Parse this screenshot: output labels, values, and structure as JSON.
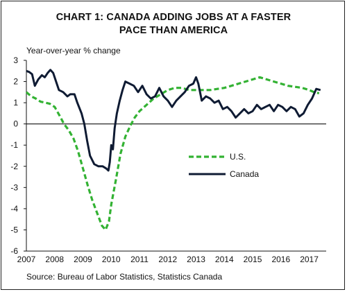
{
  "chart_data": {
    "type": "line",
    "title_lines": [
      "CHART 1: CANADA ADDING JOBS AT A FASTER",
      "PACE THAN AMERICA"
    ],
    "ylabel": "Year-over-year % change",
    "source": "Source: Bureau of Labor Statistics, Statistics Canada",
    "ylim": [
      -6,
      3
    ],
    "yticks": [
      3,
      2,
      1,
      0,
      -1,
      -2,
      -3,
      -4,
      -5,
      -6
    ],
    "xlim": [
      2007,
      2017.6
    ],
    "xticks": [
      2007,
      2008,
      2009,
      2010,
      2011,
      2012,
      2013,
      2014,
      2015,
      2016,
      2017
    ],
    "legend": {
      "position": "center-right"
    },
    "colors": {
      "us": "#33b233",
      "canada": "#0f1b33"
    },
    "series": [
      {
        "name": "U.S.",
        "style": "dashed",
        "points": [
          [
            2007.0,
            1.5
          ],
          [
            2007.17,
            1.3
          ],
          [
            2007.33,
            1.2
          ],
          [
            2007.5,
            1.05
          ],
          [
            2007.67,
            1.0
          ],
          [
            2007.83,
            0.95
          ],
          [
            2008.0,
            0.8
          ],
          [
            2008.17,
            0.4
          ],
          [
            2008.33,
            0.0
          ],
          [
            2008.5,
            -0.3
          ],
          [
            2008.67,
            -0.7
          ],
          [
            2008.83,
            -1.3
          ],
          [
            2009.0,
            -2.1
          ],
          [
            2009.17,
            -2.9
          ],
          [
            2009.33,
            -3.6
          ],
          [
            2009.5,
            -4.2
          ],
          [
            2009.67,
            -4.8
          ],
          [
            2009.8,
            -5.0
          ],
          [
            2009.92,
            -4.6
          ],
          [
            2010.0,
            -3.8
          ],
          [
            2010.17,
            -2.6
          ],
          [
            2010.33,
            -1.4
          ],
          [
            2010.5,
            -0.6
          ],
          [
            2010.67,
            -0.1
          ],
          [
            2010.83,
            0.3
          ],
          [
            2011.0,
            0.6
          ],
          [
            2011.25,
            0.9
          ],
          [
            2011.5,
            1.2
          ],
          [
            2011.75,
            1.4
          ],
          [
            2012.0,
            1.6
          ],
          [
            2012.25,
            1.7
          ],
          [
            2012.5,
            1.7
          ],
          [
            2012.75,
            1.6
          ],
          [
            2013.0,
            1.6
          ],
          [
            2013.25,
            1.6
          ],
          [
            2013.5,
            1.6
          ],
          [
            2013.75,
            1.65
          ],
          [
            2014.0,
            1.7
          ],
          [
            2014.25,
            1.8
          ],
          [
            2014.5,
            1.9
          ],
          [
            2014.75,
            2.0
          ],
          [
            2015.0,
            2.1
          ],
          [
            2015.25,
            2.2
          ],
          [
            2015.5,
            2.1
          ],
          [
            2015.75,
            2.0
          ],
          [
            2016.0,
            1.9
          ],
          [
            2016.25,
            1.8
          ],
          [
            2016.5,
            1.75
          ],
          [
            2016.75,
            1.7
          ],
          [
            2017.0,
            1.6
          ],
          [
            2017.17,
            1.5
          ],
          [
            2017.35,
            1.45
          ]
        ]
      },
      {
        "name": "Canada",
        "style": "solid",
        "points": [
          [
            2007.0,
            2.5
          ],
          [
            2007.1,
            2.45
          ],
          [
            2007.2,
            2.35
          ],
          [
            2007.3,
            1.8
          ],
          [
            2007.42,
            2.1
          ],
          [
            2007.55,
            2.3
          ],
          [
            2007.65,
            2.2
          ],
          [
            2007.75,
            2.4
          ],
          [
            2007.85,
            2.55
          ],
          [
            2007.95,
            2.4
          ],
          [
            2008.05,
            2.0
          ],
          [
            2008.15,
            1.6
          ],
          [
            2008.3,
            1.5
          ],
          [
            2008.45,
            1.3
          ],
          [
            2008.55,
            1.4
          ],
          [
            2008.7,
            1.4
          ],
          [
            2008.8,
            1.0
          ],
          [
            2008.95,
            0.5
          ],
          [
            2009.05,
            0.0
          ],
          [
            2009.15,
            -0.8
          ],
          [
            2009.25,
            -1.5
          ],
          [
            2009.4,
            -1.9
          ],
          [
            2009.55,
            -2.0
          ],
          [
            2009.7,
            -2.0
          ],
          [
            2009.82,
            -2.1
          ],
          [
            2009.9,
            -2.2
          ],
          [
            2009.95,
            -1.8
          ],
          [
            2010.0,
            -1.0
          ],
          [
            2010.06,
            -1.2
          ],
          [
            2010.12,
            -0.2
          ],
          [
            2010.2,
            0.5
          ],
          [
            2010.3,
            1.1
          ],
          [
            2010.4,
            1.6
          ],
          [
            2010.5,
            2.0
          ],
          [
            2010.65,
            1.9
          ],
          [
            2010.8,
            1.8
          ],
          [
            2010.95,
            1.5
          ],
          [
            2011.1,
            1.8
          ],
          [
            2011.25,
            1.4
          ],
          [
            2011.4,
            1.2
          ],
          [
            2011.55,
            1.3
          ],
          [
            2011.7,
            1.7
          ],
          [
            2011.85,
            1.3
          ],
          [
            2012.0,
            1.1
          ],
          [
            2012.15,
            0.8
          ],
          [
            2012.3,
            1.1
          ],
          [
            2012.45,
            1.3
          ],
          [
            2012.6,
            1.5
          ],
          [
            2012.75,
            1.8
          ],
          [
            2012.9,
            1.9
          ],
          [
            2013.0,
            2.2
          ],
          [
            2013.08,
            1.9
          ],
          [
            2013.2,
            1.1
          ],
          [
            2013.35,
            1.3
          ],
          [
            2013.5,
            1.2
          ],
          [
            2013.65,
            1.0
          ],
          [
            2013.8,
            1.1
          ],
          [
            2013.95,
            0.7
          ],
          [
            2014.1,
            0.8
          ],
          [
            2014.25,
            0.6
          ],
          [
            2014.4,
            0.3
          ],
          [
            2014.55,
            0.5
          ],
          [
            2014.7,
            0.7
          ],
          [
            2014.85,
            0.5
          ],
          [
            2015.0,
            0.6
          ],
          [
            2015.15,
            0.9
          ],
          [
            2015.3,
            0.7
          ],
          [
            2015.45,
            0.8
          ],
          [
            2015.6,
            0.9
          ],
          [
            2015.75,
            0.6
          ],
          [
            2015.9,
            0.9
          ],
          [
            2016.05,
            0.8
          ],
          [
            2016.2,
            0.6
          ],
          [
            2016.35,
            0.8
          ],
          [
            2016.5,
            0.7
          ],
          [
            2016.65,
            0.35
          ],
          [
            2016.8,
            0.5
          ],
          [
            2016.95,
            0.9
          ],
          [
            2017.1,
            1.2
          ],
          [
            2017.25,
            1.65
          ],
          [
            2017.4,
            1.6
          ]
        ]
      }
    ]
  }
}
